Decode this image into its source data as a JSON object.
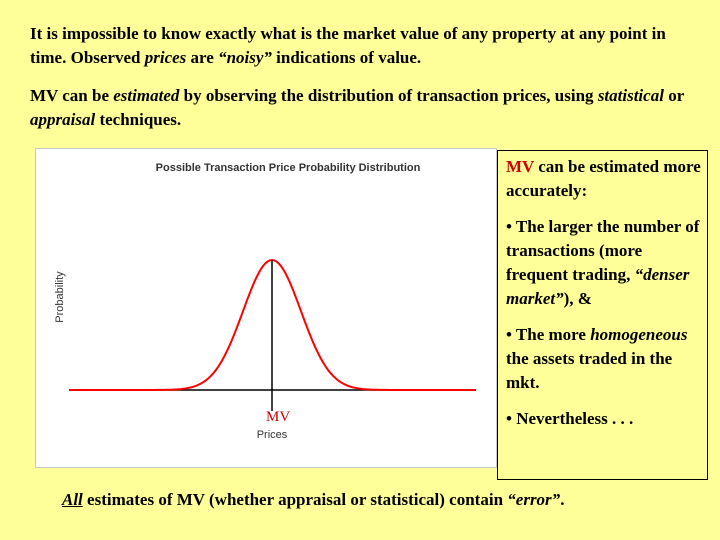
{
  "paragraph1": {
    "a": "It is impossible to know exactly what is the market value of any property at any point in time. Observed ",
    "prices": "prices",
    "b": " are ",
    "noisy": "“noisy”",
    "c": " indications of value."
  },
  "paragraph2": {
    "a": "MV can be ",
    "estimated": "estimated",
    "b": " by observing the distribution of transaction prices, using ",
    "statistical": "statistical",
    "c": " or ",
    "appraisal": "appraisal",
    "d": " techniques."
  },
  "chart_data": {
    "type": "line",
    "title": "Possible Transaction Price Probability Distribution",
    "xlabel": "Prices",
    "ylabel": "Probability",
    "annotation": "MV",
    "shape": "normal",
    "colors": {
      "curve": "#ff0000",
      "axes": "#000000",
      "annotation": "#cc0000"
    }
  },
  "side": {
    "mv": "MV",
    "intro": " can be estimated more accurately:",
    "bullet1_a": "• The larger the number of transactions (more frequent trading, ",
    "bullet1_it": "“denser market”",
    "bullet1_b": "), &",
    "bullet2_a": "• The more ",
    "bullet2_it": "homogeneous",
    "bullet2_b": " the assets traded in the mkt.",
    "bullet3": "• Nevertheless . . ."
  },
  "footer": {
    "all": "All",
    "a": " estimates of MV (whether appraisal or statistical) contain ",
    "error": "“error”",
    "b": "."
  }
}
